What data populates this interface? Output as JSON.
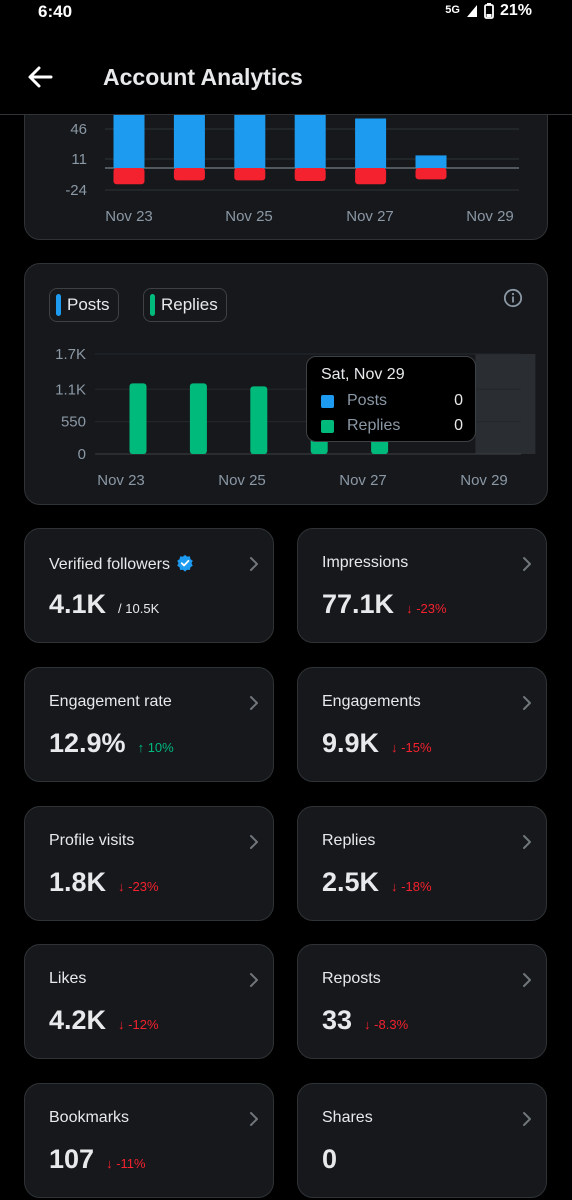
{
  "status_bar": {
    "time": "6:40",
    "network": "5G",
    "battery": "21%"
  },
  "header": {
    "title": "Account Analytics"
  },
  "chart_data": [
    {
      "type": "bar",
      "categories": [
        "Nov 23",
        "Nov 24",
        "Nov 25",
        "Nov 26",
        "Nov 27",
        "Nov 28",
        "Nov 29"
      ],
      "y_ticks": [
        "46",
        "11",
        "-24"
      ],
      "x_ticks": [
        "Nov 23",
        "Nov 25",
        "Nov 27",
        "Nov 29"
      ],
      "ylim": [
        -45,
        81
      ],
      "series": [
        {
          "values": [
            81,
            81,
            81,
            81,
            55,
            14,
            0
          ],
          "color": "#1d9bf0"
        },
        {
          "values": [
            -30,
            -23,
            -23,
            -24,
            -30,
            -21,
            0
          ],
          "color": "#f4212e"
        }
      ]
    },
    {
      "type": "bar",
      "categories": [
        "Nov 23",
        "Nov 24",
        "Nov 25",
        "Nov 26",
        "Nov 27",
        "Nov 28",
        "Nov 29"
      ],
      "y_ticks": [
        "1.7K",
        "1.1K",
        "550",
        "0"
      ],
      "x_ticks": [
        "Nov 23",
        "Nov 25",
        "Nov 27",
        "Nov 29"
      ],
      "ylim": [
        0,
        1700
      ],
      "legend": [
        {
          "name": "Posts",
          "color": "#1d9bf0"
        },
        {
          "name": "Replies",
          "color": "#00ba7c"
        }
      ],
      "series": [
        {
          "name": "Posts",
          "values": [
            0,
            0,
            0,
            0,
            0,
            0,
            0
          ],
          "color": "#1d9bf0"
        },
        {
          "name": "Replies",
          "values": [
            1200,
            1200,
            1150,
            1000,
            900,
            0,
            0
          ],
          "color": "#00ba7c"
        }
      ],
      "highlighted_category": "Nov 29",
      "tooltip": {
        "date": "Sat, Nov 29",
        "posts_label": "Posts",
        "posts_value": "0",
        "replies_label": "Replies",
        "replies_value": "0"
      }
    }
  ],
  "metrics": [
    {
      "label": "Verified followers",
      "value": "4.1K",
      "sub": "/ 10.5K",
      "delta": "",
      "trend": "",
      "verified": true
    },
    {
      "label": "Impressions",
      "value": "77.1K",
      "sub": "",
      "delta": "-23%",
      "trend": "down"
    },
    {
      "label": "Engagement rate",
      "value": "12.9%",
      "sub": "",
      "delta": "10%",
      "trend": "up"
    },
    {
      "label": "Engagements",
      "value": "9.9K",
      "sub": "",
      "delta": "-15%",
      "trend": "down"
    },
    {
      "label": "Profile visits",
      "value": "1.8K",
      "sub": "",
      "delta": "-23%",
      "trend": "down"
    },
    {
      "label": "Replies",
      "value": "2.5K",
      "sub": "",
      "delta": "-18%",
      "trend": "down"
    },
    {
      "label": "Likes",
      "value": "4.2K",
      "sub": "",
      "delta": "-12%",
      "trend": "down"
    },
    {
      "label": "Reposts",
      "value": "33",
      "sub": "",
      "delta": "-8.3%",
      "trend": "down"
    },
    {
      "label": "Bookmarks",
      "value": "107",
      "sub": "",
      "delta": "-11%",
      "trend": "down"
    },
    {
      "label": "Shares",
      "value": "0",
      "sub": "",
      "delta": "",
      "trend": ""
    }
  ],
  "colors": {
    "background": "#000000",
    "card": "#16181c",
    "blue": "#1d9bf0",
    "red": "#f4212e",
    "green": "#00ba7c"
  }
}
